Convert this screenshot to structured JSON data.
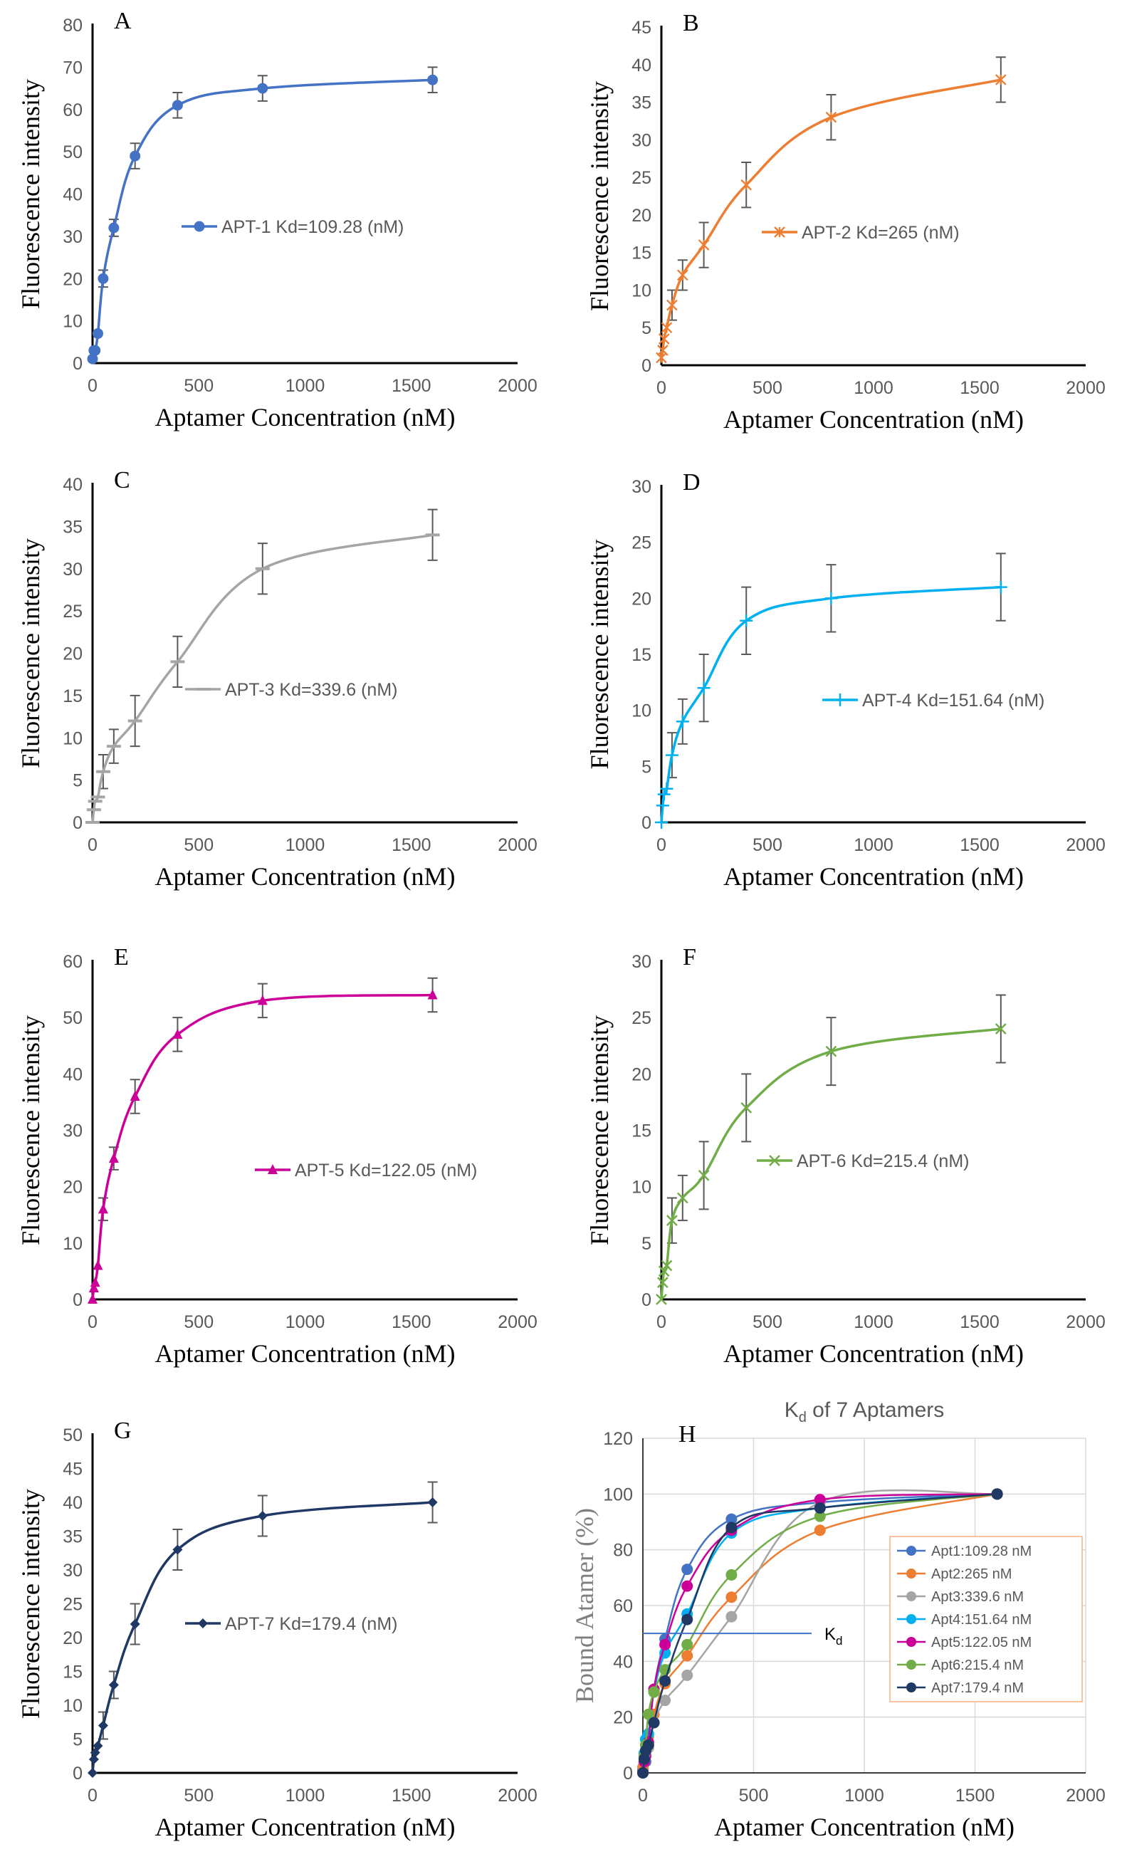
{
  "chart_data": [
    {
      "panel": "A",
      "type": "line",
      "color": "#4472C4",
      "marker": "circle",
      "x": [
        0,
        6.25,
        12.5,
        25,
        50,
        100,
        200,
        400,
        800,
        1600
      ],
      "y": [
        1,
        3,
        3,
        7,
        20,
        32,
        49,
        61,
        65,
        67
      ],
      "err": [
        0,
        0,
        0,
        0,
        2,
        2,
        3,
        3,
        3,
        3
      ],
      "legend": "APT-1 Kd=109.28 (nM)",
      "xlabel": "Aptamer Concentration (nM)",
      "ylabel": "Fluorescence intensity",
      "xlim": [
        0,
        2000
      ],
      "ylim": [
        0,
        80
      ],
      "ytick_step": 10,
      "legend_position": "middle-right"
    },
    {
      "panel": "B",
      "type": "line",
      "color": "#ED7D31",
      "marker": "asterisk",
      "x": [
        0,
        6.25,
        12.5,
        25,
        50,
        100,
        200,
        400,
        800,
        1600
      ],
      "y": [
        1,
        2,
        3.5,
        5,
        8,
        12,
        16,
        24,
        33,
        38
      ],
      "err": [
        0,
        0,
        0,
        0,
        2,
        2,
        3,
        3,
        3,
        3
      ],
      "legend": "APT-2 Kd=265 (nM)",
      "xlabel": "Aptamer Concentration (nM)",
      "ylabel": "Fluorescence intensity",
      "xlim": [
        0,
        2000
      ],
      "ylim": [
        0,
        45
      ],
      "ytick_step": 5,
      "legend_position": "middle-right"
    },
    {
      "panel": "C",
      "type": "line",
      "color": "#A5A5A5",
      "marker": "dash",
      "x": [
        0,
        6.25,
        12.5,
        25,
        50,
        100,
        200,
        400,
        800,
        1600
      ],
      "y": [
        0,
        1.5,
        2.5,
        3,
        6,
        9,
        12,
        19,
        30,
        34
      ],
      "err": [
        0,
        0,
        0,
        0,
        2,
        2,
        3,
        3,
        3,
        3
      ],
      "legend": "APT-3 Kd=339.6 (nM)",
      "xlabel": "Aptamer Concentration (nM)",
      "ylabel": "Fluorescence intensity",
      "xlim": [
        0,
        2000
      ],
      "ylim": [
        0,
        40
      ],
      "ytick_step": 5,
      "legend_position": "middle"
    },
    {
      "panel": "D",
      "type": "line",
      "color": "#00B0F0",
      "marker": "plus",
      "x": [
        0,
        6.25,
        12.5,
        25,
        50,
        100,
        200,
        400,
        800,
        1600
      ],
      "y": [
        0,
        1.5,
        2.5,
        3,
        6,
        9,
        12,
        18,
        20,
        21
      ],
      "err": [
        0,
        0,
        0,
        0,
        2,
        2,
        3,
        3,
        3,
        3
      ],
      "legend": "APT-4 Kd=151.64 (nM)",
      "xlabel": "Aptamer Concentration (nM)",
      "ylabel": "Fluorescence intensity",
      "xlim": [
        0,
        2000
      ],
      "ylim": [
        0,
        30
      ],
      "ytick_step": 5,
      "legend_position": "middle-right"
    },
    {
      "panel": "E",
      "type": "line",
      "color": "#CC0099",
      "marker": "triangle",
      "x": [
        0,
        6.25,
        12.5,
        25,
        50,
        100,
        200,
        400,
        800,
        1600
      ],
      "y": [
        0,
        2,
        3,
        6,
        16,
        25,
        36,
        47,
        53,
        54
      ],
      "err": [
        0,
        0,
        0,
        0,
        2,
        2,
        3,
        3,
        3,
        3
      ],
      "legend": "APT-5 Kd=122.05 (nM)",
      "xlabel": "Aptamer Concentration (nM)",
      "ylabel": "Fluorescence intensity",
      "xlim": [
        0,
        2000
      ],
      "ylim": [
        0,
        60
      ],
      "ytick_step": 10,
      "legend_position": "middle-right"
    },
    {
      "panel": "F",
      "type": "line",
      "color": "#70AD47",
      "marker": "x",
      "x": [
        0,
        6.25,
        12.5,
        25,
        50,
        100,
        200,
        400,
        800,
        1600
      ],
      "y": [
        0,
        1.5,
        2.5,
        3,
        7,
        9,
        11,
        17,
        22,
        24
      ],
      "err": [
        0,
        0,
        0,
        0,
        2,
        2,
        3,
        3,
        3,
        3
      ],
      "legend": "APT-6 Kd=215.4 (nM)",
      "xlabel": "Aptamer Concentration (nM)",
      "ylabel": "Fluorescence intensity",
      "xlim": [
        0,
        2000
      ],
      "ylim": [
        0,
        30
      ],
      "ytick_step": 5,
      "legend_position": "middle-right"
    },
    {
      "panel": "G",
      "type": "line",
      "color": "#203864",
      "marker": "diamond",
      "x": [
        0,
        6.25,
        12.5,
        25,
        50,
        100,
        200,
        400,
        800,
        1600
      ],
      "y": [
        0,
        2,
        3,
        4,
        7,
        13,
        22,
        33,
        38,
        40
      ],
      "err": [
        0,
        0,
        0,
        0,
        2,
        2,
        3,
        3,
        3,
        3
      ],
      "legend": "APT-7 Kd=179.4 (nM)",
      "xlabel": "Aptamer Concentration (nM)",
      "ylabel": "Fluorescence intensity",
      "xlim": [
        0,
        2000
      ],
      "ylim": [
        0,
        50
      ],
      "ytick_step": 5,
      "legend_position": "middle-right"
    },
    {
      "panel": "H",
      "type": "scatter",
      "title_main": "K",
      "title_sub": "d",
      "title_rest": " of 7 Aptamers",
      "xlabel": "Aptamer Concentration (nM)",
      "ylabel": "Bound Atamer (%)",
      "xlim": [
        0,
        2000
      ],
      "ylim": [
        0,
        120
      ],
      "ytick_step": 20,
      "grid": true,
      "kd_line_y": 50,
      "kd_label_main": "K",
      "kd_label_sub": "d",
      "x": [
        0,
        6.25,
        12.5,
        25,
        50,
        100,
        200,
        400,
        800,
        1600
      ],
      "series": [
        {
          "name": "Apt1:109.28 nM",
          "color": "#4472C4",
          "values": [
            1,
            4,
            4,
            10,
            30,
            48,
            73,
            91,
            97,
            100
          ]
        },
        {
          "name": "Apt2:265 nM",
          "color": "#ED7D31",
          "values": [
            2,
            5,
            8,
            13,
            21,
            32,
            42,
            63,
            87,
            100
          ]
        },
        {
          "name": "Apt3:339.6 nM",
          "color": "#A5A5A5",
          "values": [
            0,
            4,
            7,
            9,
            18,
            26,
            35,
            56,
            97,
            100
          ]
        },
        {
          "name": "Apt4:151.64 nM",
          "color": "#00B0F0",
          "values": [
            0,
            7,
            12,
            14,
            29,
            43,
            57,
            86,
            95,
            100
          ]
        },
        {
          "name": "Apt5:122.05 nM",
          "color": "#CC0099",
          "values": [
            0,
            4,
            6,
            11,
            30,
            46,
            67,
            87,
            98,
            100
          ]
        },
        {
          "name": "Apt6:215.4 nM",
          "color": "#70AD47",
          "values": [
            0,
            6,
            10,
            21,
            29,
            37,
            46,
            71,
            92,
            100
          ]
        },
        {
          "name": "Apt7:179.4 nM",
          "color": "#203864",
          "values": [
            0,
            5,
            8,
            10,
            18,
            33,
            55,
            88,
            95,
            100
          ]
        }
      ]
    }
  ]
}
